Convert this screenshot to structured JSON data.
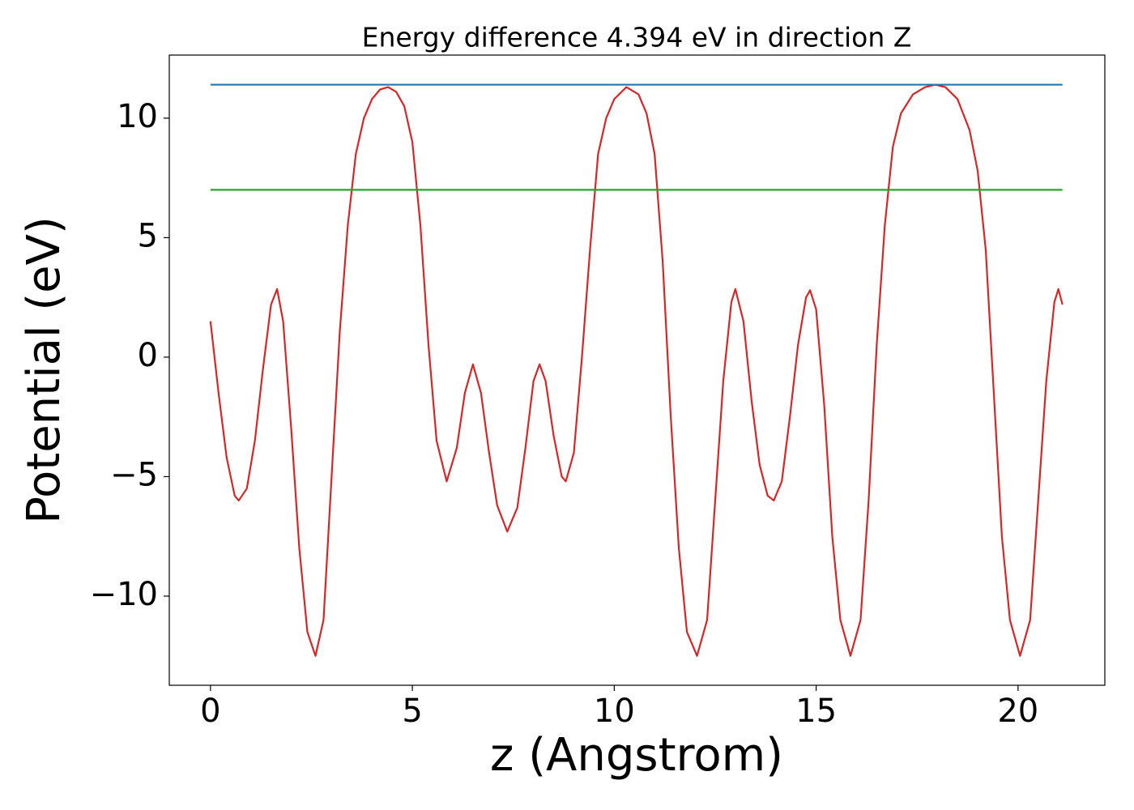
{
  "chart_data": {
    "type": "line",
    "title": "Energy difference 4.394 eV in direction Z",
    "x_label": "z (Angstrom)",
    "y_label": "Potential (eV)",
    "xlim": [
      -1.02,
      22.15
    ],
    "ylim": [
      -13.73,
      12.64
    ],
    "xticks": [
      0,
      5,
      10,
      15,
      20
    ],
    "yticks": [
      {
        "value": -10,
        "label": "−10"
      },
      {
        "value": -5,
        "label": "−5"
      },
      0,
      5,
      10
    ],
    "grid": false,
    "series": [
      {
        "color": "#d62728",
        "x": [
          0,
          0.2,
          0.4,
          0.6,
          0.7,
          0.9,
          1.1,
          1.3,
          1.5,
          1.65,
          1.8,
          2.0,
          2.2,
          2.4,
          2.6,
          2.8,
          3.0,
          3.2,
          3.4,
          3.6,
          3.8,
          4.0,
          4.2,
          4.4,
          4.6,
          4.8,
          5.0,
          5.2,
          5.4,
          5.6,
          5.85,
          6.1,
          6.3,
          6.5,
          6.7,
          6.9,
          7.1,
          7.35,
          7.6,
          7.8,
          8.0,
          8.15,
          8.3,
          8.5,
          8.7,
          8.8,
          9.0,
          9.2,
          9.4,
          9.6,
          9.8,
          10.0,
          10.3,
          10.6,
          10.8,
          11.0,
          11.2,
          11.4,
          11.6,
          11.8,
          12.05,
          12.3,
          12.5,
          12.7,
          12.9,
          13.0,
          13.2,
          13.4,
          13.6,
          13.8,
          13.95,
          14.15,
          14.35,
          14.55,
          14.75,
          14.85,
          15.0,
          15.2,
          15.4,
          15.6,
          15.85,
          16.1,
          16.3,
          16.5,
          16.7,
          16.9,
          17.1,
          17.4,
          17.7,
          17.95,
          18.2,
          18.5,
          18.8,
          19.0,
          19.2,
          19.4,
          19.6,
          19.8,
          20.05,
          20.3,
          20.5,
          20.7,
          20.9,
          21.0,
          21.1
        ],
        "values": [
          1.5,
          -1.5,
          -4.2,
          -5.8,
          -6.0,
          -5.5,
          -3.5,
          -0.5,
          2.2,
          2.85,
          1.5,
          -3.0,
          -8.0,
          -11.5,
          -12.5,
          -11.0,
          -5.0,
          1.0,
          5.5,
          8.5,
          10.0,
          10.8,
          11.2,
          11.3,
          11.1,
          10.5,
          9.0,
          5.5,
          0.5,
          -3.5,
          -5.2,
          -3.8,
          -1.5,
          -0.3,
          -1.5,
          -4.0,
          -6.2,
          -7.3,
          -6.3,
          -3.8,
          -1.0,
          -0.3,
          -1.0,
          -3.3,
          -5.0,
          -5.2,
          -4.0,
          0.0,
          4.5,
          8.5,
          10.0,
          10.8,
          11.3,
          11.0,
          10.2,
          8.5,
          4.0,
          -2.5,
          -8.0,
          -11.5,
          -12.5,
          -11.0,
          -6.0,
          -1.0,
          2.3,
          2.85,
          1.5,
          -1.8,
          -4.5,
          -5.8,
          -6.0,
          -5.2,
          -2.5,
          0.5,
          2.5,
          2.8,
          2.0,
          -2.0,
          -7.5,
          -11.0,
          -12.5,
          -11.0,
          -6.0,
          0.5,
          5.5,
          8.8,
          10.2,
          11.0,
          11.3,
          11.4,
          11.3,
          10.8,
          9.5,
          7.8,
          4.5,
          -1.5,
          -7.5,
          -11.0,
          -12.5,
          -11.0,
          -6.0,
          -1.0,
          2.3,
          2.85,
          2.2
        ]
      },
      {
        "color": "#1f77b4",
        "x": [
          0,
          21.1
        ],
        "values": [
          11.4,
          11.4
        ]
      },
      {
        "color": "#2ca02c",
        "x": [
          0,
          21.1
        ],
        "values": [
          7.0,
          7.0
        ]
      }
    ]
  }
}
